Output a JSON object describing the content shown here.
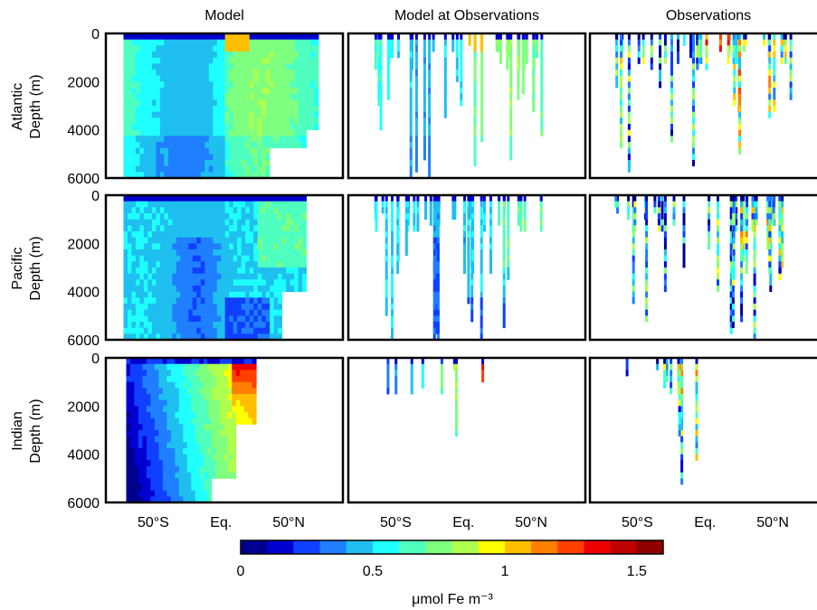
{
  "figure": {
    "columns": [
      "Model",
      "Model at Observations",
      "Observations"
    ],
    "rows": [
      {
        "basin": "Atlantic",
        "ylabel": "Depth (m)"
      },
      {
        "basin": "Pacific",
        "ylabel": "Depth (m)"
      },
      {
        "basin": "Indian",
        "ylabel": "Depth (m)"
      }
    ],
    "depth_ticks": [
      "0",
      "2000",
      "4000",
      "6000"
    ],
    "lat_ticks": [
      "50°S",
      "Eq.",
      "50°N"
    ],
    "colorbar": {
      "ticks": [
        "0",
        "0.5",
        "1",
        "1.5"
      ],
      "label": "μmol Fe m⁻³"
    }
  },
  "chart_data": {
    "type": "heatmap",
    "xlabel": "",
    "ylabel": "Depth (m)",
    "ylim": [
      0,
      6000
    ],
    "ytick_values": [
      0,
      2000,
      4000,
      6000
    ],
    "xtick_values": [
      -50,
      0,
      50
    ],
    "colorbar_range": [
      0,
      1.6
    ],
    "colorbar_tick_values": [
      0,
      0.5,
      1,
      1.5
    ],
    "colormap": [
      "#00008f",
      "#0000d0",
      "#0f3fff",
      "#1f7fff",
      "#1fbfef",
      "#1fffff",
      "#4fffbf",
      "#7fff7f",
      "#afff4f",
      "#ffff00",
      "#ffbf00",
      "#ff7f00",
      "#ff3f00",
      "#ef0000",
      "#bf0000",
      "#8f0000"
    ],
    "panels": [
      {
        "row": "Atlantic",
        "column": "Model"
      },
      {
        "row": "Atlantic",
        "column": "Model at Observations"
      },
      {
        "row": "Atlantic",
        "column": "Observations"
      },
      {
        "row": "Pacific",
        "column": "Model"
      },
      {
        "row": "Pacific",
        "column": "Model at Observations"
      },
      {
        "row": "Pacific",
        "column": "Observations"
      },
      {
        "row": "Indian",
        "column": "Model"
      },
      {
        "row": "Indian",
        "column": "Model at Observations"
      },
      {
        "row": "Indian",
        "column": "Observations"
      }
    ]
  }
}
